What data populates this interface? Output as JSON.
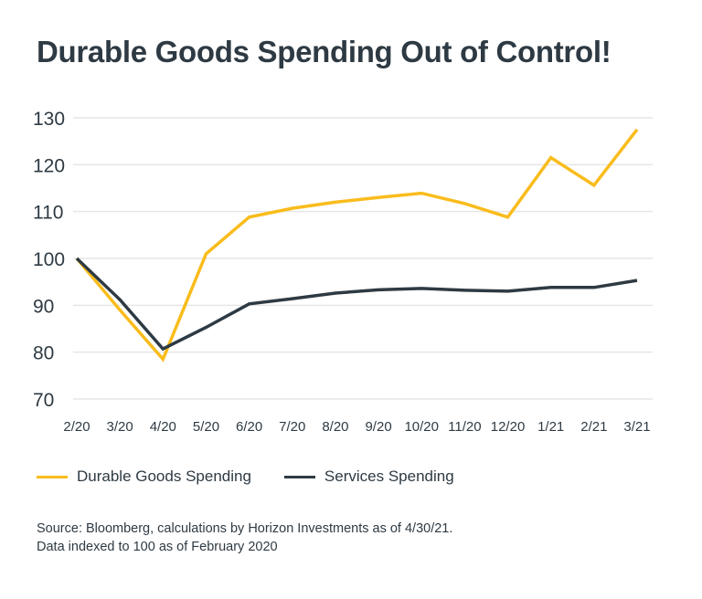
{
  "chart_data": {
    "type": "line",
    "title": "Durable Goods Spending Out of Control!",
    "categories": [
      "2/20",
      "3/20",
      "4/20",
      "5/20",
      "6/20",
      "7/20",
      "8/20",
      "9/20",
      "10/20",
      "11/20",
      "12/20",
      "1/21",
      "2/21",
      "3/21"
    ],
    "ylim": [
      70,
      130
    ],
    "yticks": [
      70,
      80,
      90,
      100,
      110,
      120,
      130
    ],
    "grid": true,
    "legend_placement": "bottom",
    "series": [
      {
        "name": "Durable Goods Spending",
        "color": "#F9BC1C",
        "values": [
          100,
          89,
          78.5,
          101,
          108.8,
          110.7,
          112,
          113,
          113.9,
          111.7,
          108.8,
          121.5,
          115.6,
          127.5
        ]
      },
      {
        "name": "Services Spending",
        "color": "#2E3A43",
        "values": [
          100,
          91.2,
          80.7,
          85.3,
          90.3,
          91.4,
          92.6,
          93.3,
          93.6,
          93.2,
          93,
          93.8,
          93.8,
          95.3
        ]
      }
    ]
  },
  "source": {
    "line1": "Source: Bloomberg, calculations by Horizon Investments as of 4/30/21.",
    "line2": "Data indexed to 100 as of February 2020"
  }
}
